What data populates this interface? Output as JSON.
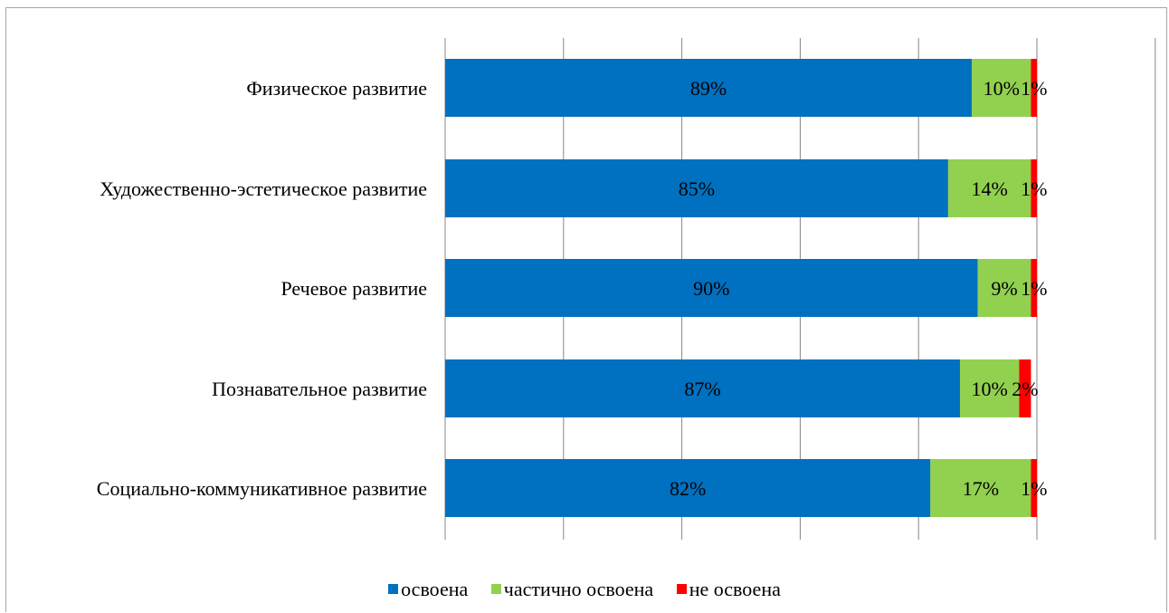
{
  "chart_data": {
    "type": "bar",
    "orientation": "horizontal",
    "stacked": true,
    "title": "",
    "xlabel": "",
    "ylabel": "",
    "xlim": [
      0,
      120
    ],
    "x_gridlines": [
      0,
      20,
      40,
      60,
      80,
      100,
      120
    ],
    "grid": true,
    "legend_position": "bottom",
    "categories": [
      "Физическое развитие",
      "Художественно-эстетическое развитие",
      "Речевое развитие",
      "Познавательное развитие",
      "Социально-коммуникативное развитие"
    ],
    "series": [
      {
        "name": "освоена",
        "color": "#0070C0",
        "values": [
          89,
          85,
          90,
          87,
          82
        ],
        "labels": [
          "89%",
          "85%",
          "90%",
          "87%",
          "82%"
        ]
      },
      {
        "name": "частично освоена",
        "color": "#92D050",
        "values": [
          10,
          14,
          9,
          10,
          17
        ],
        "labels": [
          "10%",
          "14%",
          "9%",
          "10%",
          "17%"
        ]
      },
      {
        "name": "не освоена",
        "color": "#FF0000",
        "values": [
          1,
          1,
          1,
          2,
          1
        ],
        "labels": [
          "1%",
          "1%",
          "1%",
          "2%",
          "1%"
        ]
      }
    ]
  }
}
